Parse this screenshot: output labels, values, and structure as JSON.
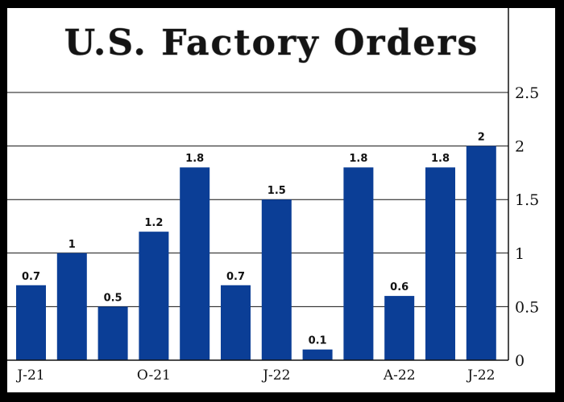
{
  "chart_data": {
    "type": "bar",
    "title": "U.S. Factory Orders",
    "categories": [
      "J-21",
      "",
      "",
      "O-21",
      "",
      "",
      "J-22",
      "",
      "",
      "A-22",
      "",
      "J-22"
    ],
    "values": [
      0.7,
      1,
      0.5,
      1.2,
      1.8,
      0.7,
      1.5,
      0.1,
      1.8,
      0.6,
      1.8,
      2
    ],
    "data_labels": [
      "0.7",
      "1",
      "0.5",
      "1.2",
      "1.8",
      "0.7",
      "1.5",
      "0.1",
      "1.8",
      "0.6",
      "1.8",
      "2"
    ],
    "ylim": [
      0,
      2.5
    ],
    "yticks": [
      0,
      0.5,
      1,
      1.5,
      2,
      2.5
    ],
    "ytick_labels": [
      "0",
      "0.5",
      "1",
      "1.5",
      "2",
      "2.5"
    ],
    "y_axis_side": "right",
    "grid": true,
    "bar_color": "#0b3e96",
    "xlabel": "",
    "ylabel": ""
  }
}
